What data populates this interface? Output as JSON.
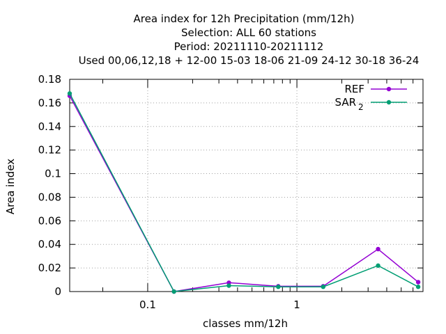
{
  "title_lines": [
    "Area index  for 12h Precipitation (mm/12h)",
    "Selection: ALL     60 stations",
    "Period: 20211110-20211112",
    "Used  00,06,12,18 + 12-00 15-03 18-06 21-09 24-12 30-18 36-24"
  ],
  "colors": {
    "REF": "#9400d3",
    "SAR": "#009e73"
  },
  "chart_data": {
    "type": "line",
    "xlabel": "classes mm/12h",
    "ylabel": "Area index",
    "xscale": "log",
    "xlim": [
      0.03,
      7.0
    ],
    "ylim": [
      0,
      0.18
    ],
    "x_ticks": [
      {
        "value": 0.1,
        "label": "0.1"
      },
      {
        "value": 1,
        "label": "1"
      }
    ],
    "x_minor_ticks": [
      0.05,
      0.2,
      0.3,
      0.4,
      0.5,
      0.6,
      0.7,
      0.8,
      0.9,
      2,
      3,
      4,
      5,
      6,
      7
    ],
    "y_ticks": [
      "0",
      "0.02",
      "0.04",
      "0.06",
      "0.08",
      "0.1",
      "0.12",
      "0.14",
      "0.16",
      "0.18"
    ],
    "grid": true,
    "legend_position": "top-right",
    "series": [
      {
        "name": "REF",
        "x": [
          0.03,
          0.15,
          0.35,
          0.75,
          1.5,
          3.5,
          6.5
        ],
        "values": [
          0.166,
          0.0,
          0.0075,
          0.0045,
          0.0045,
          0.036,
          0.008
        ]
      },
      {
        "name": "SAR",
        "name_subscript": "2",
        "x": [
          0.03,
          0.15,
          0.35,
          0.75,
          1.5,
          3.5,
          6.5
        ],
        "values": [
          0.168,
          0.0,
          0.005,
          0.004,
          0.004,
          0.022,
          0.004
        ]
      }
    ]
  }
}
